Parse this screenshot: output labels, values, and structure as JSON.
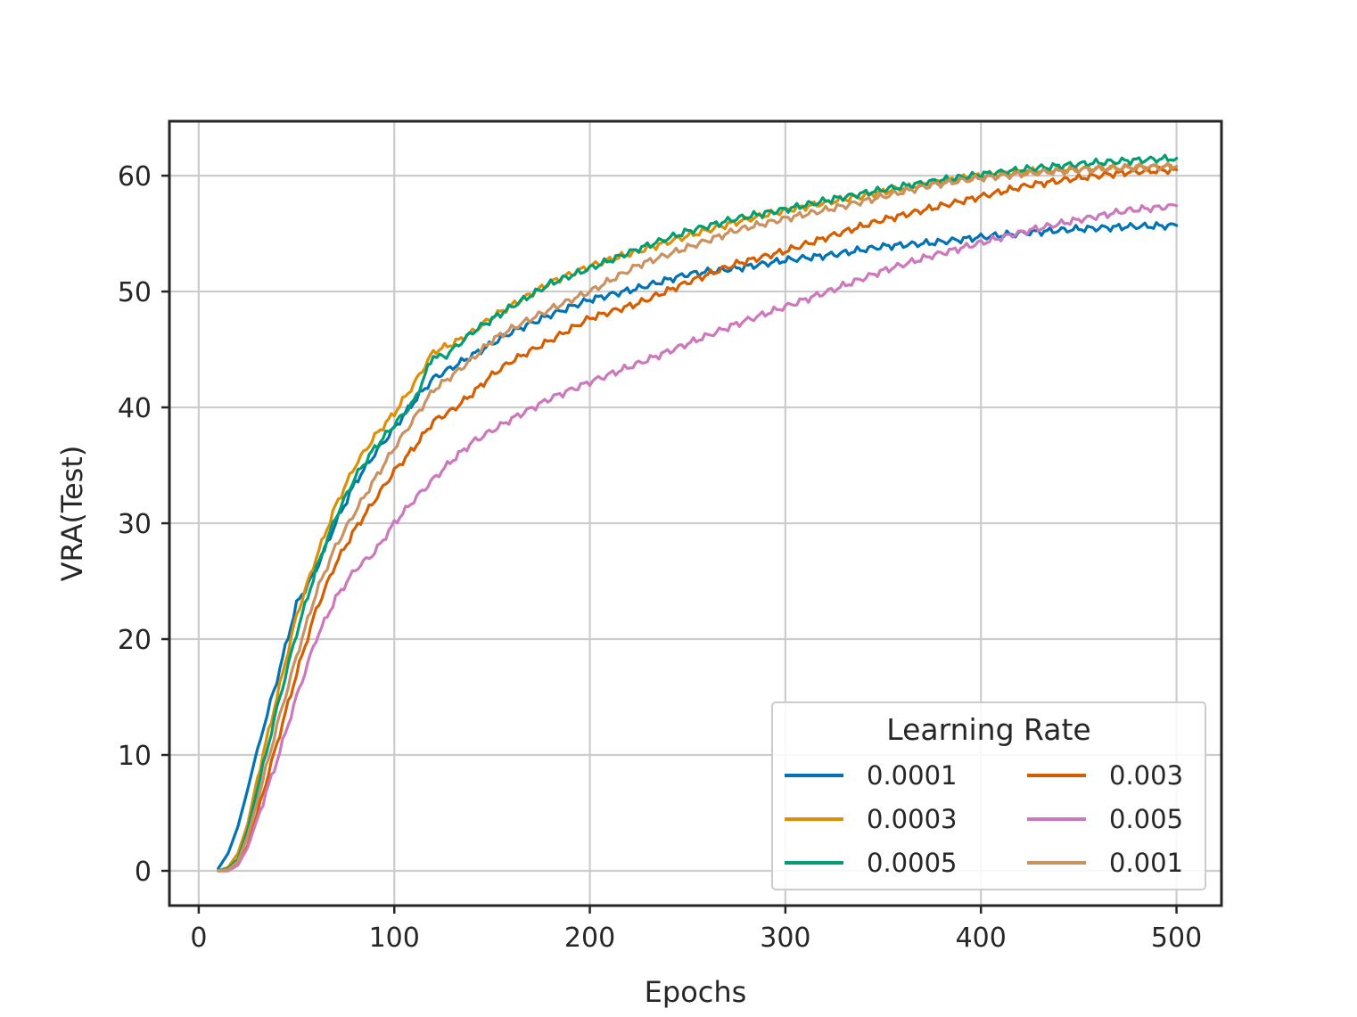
{
  "chart_data": {
    "type": "line",
    "xlabel": "Epochs",
    "ylabel": "VRA(Test)",
    "xlim": [
      -15,
      523
    ],
    "ylim": [
      -3,
      64.7
    ],
    "xticks": [
      0,
      100,
      200,
      300,
      400,
      500
    ],
    "yticks": [
      0,
      10,
      20,
      30,
      40,
      50,
      60
    ],
    "xtick_labels": [
      "0",
      "100",
      "200",
      "300",
      "400",
      "500"
    ],
    "ytick_labels": [
      "0",
      "10",
      "20",
      "30",
      "40",
      "50",
      "60"
    ],
    "grid": true,
    "legend": {
      "title": "Learning Rate",
      "position": "lower-right",
      "columns": 2
    },
    "series": [
      {
        "name": "0.0001",
        "color": "#0173b2",
        "x": [
          10,
          15,
          20,
          25,
          30,
          35,
          40,
          50,
          60,
          70,
          80,
          90,
          100,
          110,
          120,
          130,
          140,
          150,
          160,
          180,
          200,
          225,
          250,
          275,
          300,
          325,
          350,
          375,
          400,
          425,
          450,
          475,
          500
        ],
        "y": [
          0.2,
          1.5,
          3.8,
          7,
          10.5,
          13.5,
          16.5,
          23,
          26,
          30,
          33.5,
          36,
          38.2,
          40.5,
          42.5,
          43.5,
          44.5,
          45.5,
          46.5,
          48,
          49.3,
          50.3,
          51.5,
          52,
          52.7,
          53.2,
          53.9,
          54.2,
          54.7,
          55.1,
          55.4,
          55.6,
          55.7
        ]
      },
      {
        "name": "0.0003",
        "color": "#de8f05",
        "x": [
          10,
          15,
          20,
          25,
          30,
          40,
          50,
          60,
          70,
          80,
          90,
          100,
          110,
          120,
          130,
          140,
          150,
          160,
          180,
          200,
          225,
          250,
          275,
          300,
          325,
          350,
          375,
          400,
          425,
          450,
          475,
          500
        ],
        "y": [
          0,
          0.3,
          1.5,
          4,
          8,
          15,
          22,
          27,
          31.5,
          35,
          37.5,
          39.5,
          42,
          44.8,
          45.5,
          46.5,
          47.8,
          48.8,
          50.8,
          52.2,
          53.5,
          54.8,
          56,
          57,
          57.8,
          58.6,
          59.4,
          60,
          60.4,
          60.6,
          60.7,
          60.8
        ]
      },
      {
        "name": "0.0005",
        "color": "#029e73",
        "x": [
          10,
          15,
          20,
          25,
          30,
          40,
          50,
          60,
          70,
          80,
          90,
          100,
          110,
          120,
          125,
          130,
          140,
          150,
          160,
          180,
          200,
          225,
          250,
          275,
          300,
          325,
          350,
          375,
          400,
          425,
          450,
          475,
          500
        ],
        "y": [
          0,
          0.2,
          1,
          3.5,
          7,
          14,
          20.5,
          26,
          30.5,
          34,
          36.5,
          38.5,
          40.5,
          44.5,
          44.3,
          45,
          46.5,
          47.6,
          48.7,
          50.7,
          52,
          53.7,
          55.2,
          56.3,
          57.1,
          58,
          58.8,
          59.5,
          60.1,
          60.6,
          61,
          61.3,
          61.5
        ]
      },
      {
        "name": "0.003",
        "color": "#d55e00",
        "x": [
          10,
          15,
          20,
          25,
          30,
          40,
          50,
          60,
          70,
          80,
          90,
          100,
          110,
          120,
          130,
          140,
          150,
          160,
          180,
          200,
          225,
          250,
          275,
          300,
          325,
          350,
          375,
          400,
          425,
          450,
          475,
          500
        ],
        "y": [
          0,
          0,
          0.5,
          2.2,
          5,
          11,
          17,
          22.5,
          26.5,
          29.5,
          32,
          34.5,
          36.5,
          38.8,
          39.8,
          41.2,
          42.8,
          44,
          45.8,
          47.7,
          49,
          50.8,
          52.4,
          53.5,
          54.9,
          56.2,
          57.2,
          58.2,
          59.2,
          59.8,
          60.3,
          60.5
        ]
      },
      {
        "name": "0.005",
        "color": "#cc78bc",
        "x": [
          10,
          15,
          20,
          25,
          30,
          40,
          50,
          60,
          70,
          80,
          90,
          100,
          110,
          120,
          130,
          140,
          150,
          160,
          180,
          200,
          225,
          250,
          275,
          300,
          325,
          350,
          375,
          400,
          425,
          450,
          475,
          500
        ],
        "y": [
          0,
          0,
          0.5,
          2,
          4.5,
          9.5,
          15,
          20,
          23.5,
          26,
          27.5,
          30,
          32,
          33.8,
          35.5,
          37,
          38,
          39,
          40.8,
          42.2,
          43.8,
          45.5,
          47.2,
          48.7,
          50.2,
          51.8,
          53.1,
          54.2,
          55.3,
          56.2,
          57,
          57.4
        ]
      },
      {
        "name": "0.001",
        "color": "#ca9161",
        "x": [
          10,
          15,
          20,
          25,
          30,
          40,
          50,
          60,
          70,
          80,
          90,
          100,
          110,
          120,
          130,
          140,
          150,
          160,
          180,
          200,
          225,
          250,
          275,
          300,
          325,
          350,
          375,
          400,
          425,
          450,
          475,
          500
        ],
        "y": [
          0,
          0.1,
          0.8,
          3,
          6,
          12.5,
          18.5,
          24,
          28,
          31,
          33.8,
          36.5,
          39,
          41.5,
          42.8,
          44.2,
          45.8,
          46.8,
          48.5,
          50,
          52.3,
          53.8,
          55.3,
          56.3,
          57.2,
          58.2,
          59.2,
          59.8,
          60.2,
          60.5,
          60.7,
          60.8
        ]
      }
    ]
  }
}
